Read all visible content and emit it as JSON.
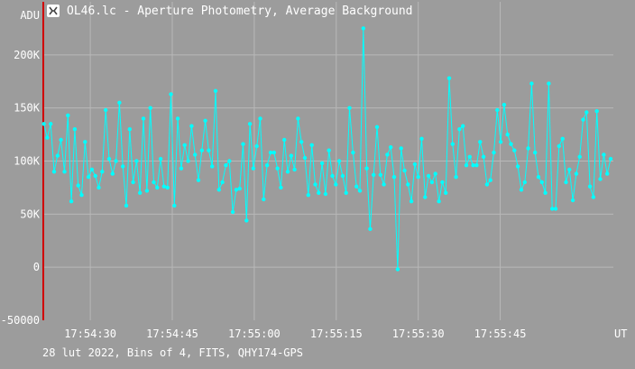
{
  "window": {
    "title": "OL46.lc - Aperture Photometry, Average Background"
  },
  "footer": {
    "text": "28 lut 2022, Bins of 4, FITS, QHY174-GPS"
  },
  "colors": {
    "background": "#9c9c9c",
    "grid": "#b8b8b8",
    "series": "#00ffff",
    "marker_line": "#d00000",
    "text": "#ffffff"
  },
  "chart_data": {
    "type": "line",
    "title": "OL46.lc - Aperture Photometry, Average Background",
    "xlabel": "UT",
    "ylabel": "ADU",
    "ylim": [
      -50000,
      250000
    ],
    "y_ticks": [
      -50000,
      0,
      50000,
      100000,
      150000,
      200000
    ],
    "y_tick_labels": [
      "-50000",
      "0",
      "50K",
      "100K",
      "150K",
      "200K"
    ],
    "x_range": [
      "17:54:21.4",
      "17:56:05.7"
    ],
    "x_ticks": [
      "17:54:30",
      "17:54:45",
      "17:55:00",
      "17:55:15",
      "17:55:30",
      "17:55:45"
    ],
    "grid": true,
    "markers": true,
    "series": [
      {
        "time_start": "17:54:21.5",
        "time_end": "17:56:05.2",
        "values": [
          135000,
          122000,
          135000,
          90000,
          105000,
          120000,
          90000,
          143000,
          62000,
          130000,
          77000,
          68000,
          118000,
          85000,
          92000,
          86000,
          75000,
          90000,
          148000,
          102000,
          88000,
          100000,
          155000,
          95000,
          58000,
          130000,
          80000,
          100000,
          70000,
          140000,
          72000,
          150000,
          80000,
          75000,
          102000,
          76000,
          75000,
          163000,
          58000,
          140000,
          93000,
          115000,
          100000,
          133000,
          106000,
          82000,
          110000,
          138000,
          110000,
          95000,
          166000,
          73000,
          80000,
          96000,
          100000,
          52000,
          73000,
          74000,
          116000,
          44000,
          135000,
          93000,
          114000,
          140000,
          64000,
          96000,
          108000,
          108000,
          93000,
          75000,
          120000,
          90000,
          105000,
          92000,
          140000,
          118000,
          103000,
          68000,
          115000,
          78000,
          70000,
          98000,
          69000,
          110000,
          86000,
          78000,
          100000,
          86000,
          70000,
          150000,
          108000,
          76000,
          72000,
          225000,
          93000,
          36000,
          87000,
          132000,
          87000,
          78000,
          106000,
          113000,
          85000,
          -2000,
          112000,
          91000,
          78000,
          62000,
          97000,
          85000,
          121000,
          66000,
          86000,
          80000,
          88000,
          62000,
          80000,
          70000,
          178000,
          116000,
          85000,
          130000,
          133000,
          96000,
          104000,
          96000,
          96000,
          118000,
          104000,
          78000,
          82000,
          108000,
          148000,
          118000,
          153000,
          125000,
          116000,
          110000,
          95000,
          73000,
          80000,
          112000,
          173000,
          108000,
          85000,
          80000,
          70000,
          173000,
          55000,
          55000,
          114000,
          121000,
          80000,
          92000,
          63000,
          88000,
          104000,
          139000,
          146000,
          76000,
          66000,
          147000,
          83000,
          106000,
          88000,
          102000
        ]
      }
    ]
  }
}
